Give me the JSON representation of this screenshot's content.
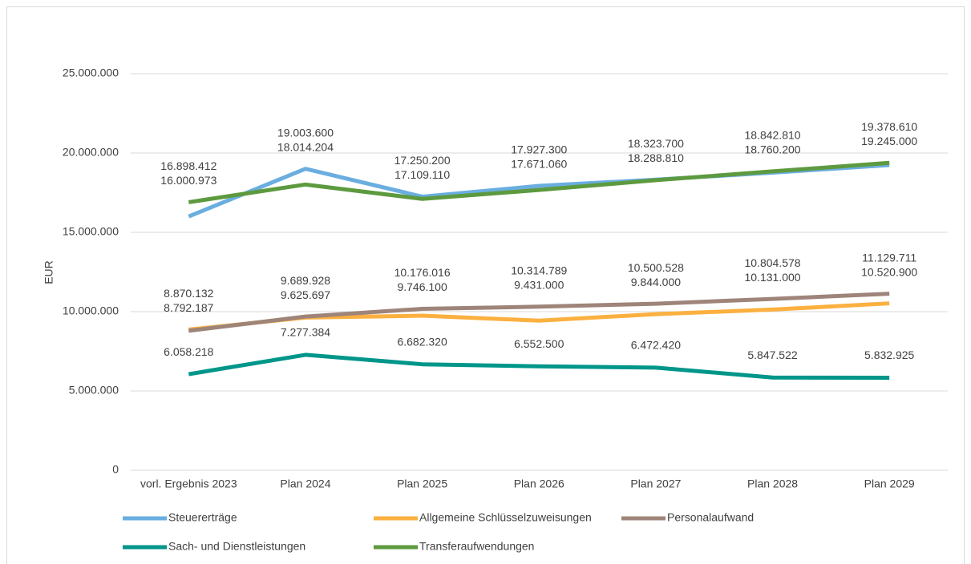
{
  "chart_data": {
    "type": "line",
    "y_label": "EUR",
    "categories": [
      "vorl. Ergebnis 2023",
      "Plan 2024",
      "Plan 2025",
      "Plan 2026",
      "Plan 2027",
      "Plan 2028",
      "Plan 2029"
    ],
    "series": [
      {
        "name": "Steuererträge",
        "color": "#6aaee0",
        "values": [
          16000973,
          19003600,
          17250200,
          17927300,
          18323700,
          18760200,
          19245000
        ],
        "value_labels": [
          "16.000.973",
          "19.003.600",
          "17.250.200",
          "17.927.300",
          "18.323.700",
          "18.760.200",
          "19.245.000"
        ]
      },
      {
        "name": "Allgemeine Schlüsselzuweisungen",
        "color": "#fbb040",
        "values": [
          8870132,
          9625697,
          9746100,
          9431000,
          9844000,
          10131000,
          10520900
        ],
        "value_labels": [
          "8.870.132",
          "9.625.697",
          "9.746.100",
          "9.431.000",
          "9.844.000",
          "10.131.000",
          "10.520.900"
        ]
      },
      {
        "name": "Personalaufwand",
        "color": "#9e8479",
        "values": [
          8792187,
          9689928,
          10176016,
          10314789,
          10500528,
          10804578,
          11129711
        ],
        "value_labels": [
          "8.792.187",
          "9.689.928",
          "10.176.016",
          "10.314.789",
          "10.500.528",
          "10.804.578",
          "11.129.711"
        ]
      },
      {
        "name": "Sach- und Dienstleistungen",
        "color": "#00968a",
        "values": [
          6058218,
          7277384,
          6682320,
          6552500,
          6472420,
          5847522,
          5832925
        ],
        "value_labels": [
          "6.058.218",
          "7.277.384",
          "6.682.320",
          "6.552.500",
          "6.472.420",
          "5.847.522",
          "5.832.925"
        ]
      },
      {
        "name": "Transferaufwendungen",
        "color": "#5d9a3f",
        "values": [
          16898412,
          18014204,
          17109110,
          17671060,
          18288810,
          18842810,
          19378610
        ],
        "value_labels": [
          "16.898.412",
          "18.014.204",
          "17.109.110",
          "17.671.060",
          "18.288.810",
          "18.842.810",
          "19.378.610"
        ]
      }
    ],
    "ylim": [
      0,
      25000000
    ],
    "yticks": [
      0,
      {
        "value": 5000000,
        "label": "5.000.000"
      },
      {
        "value": 10000000,
        "label": "10.000.000"
      },
      {
        "value": 15000000,
        "label": "15.000.000"
      },
      {
        "value": 20000000,
        "label": "20.000.000"
      },
      {
        "value": 25000000,
        "label": "25.000.000"
      }
    ],
    "grid": true
  }
}
